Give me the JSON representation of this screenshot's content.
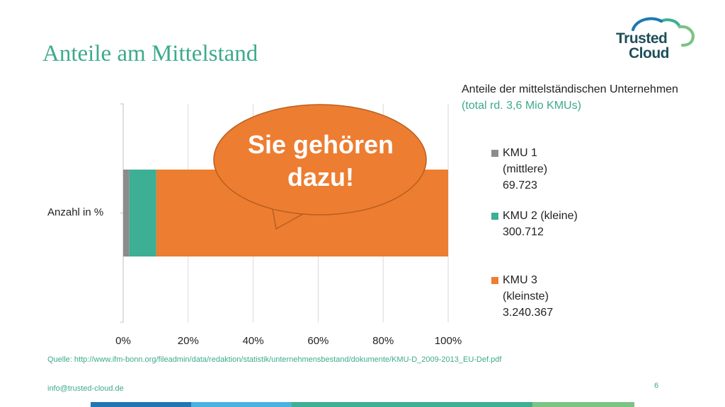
{
  "page": {
    "title": "Anteile am Mittelstand",
    "source": "Quelle: http://www.ifm-bonn.org/fileadmin/data/redaktion/statistik/unternehmensbestand/dokumente/KMU-D_2009-2013_EU-Def.pdf",
    "email": "info@trusted-cloud.de",
    "page_number": "6"
  },
  "logo": {
    "line1": "Trusted",
    "line2": "Cloud",
    "icon": "cloud-logo-icon"
  },
  "callout": {
    "line1": "Sie gehören",
    "line2": "dazu!"
  },
  "legend": {
    "title": "Anteile der mittelständischen Unternehmen",
    "subtitle": "(total rd. 3,6 Mio KMUs)",
    "items": [
      {
        "lines": [
          "KMU 1",
          "(mittlere)",
          "69.723"
        ],
        "color": "#8c8c8c"
      },
      {
        "lines": [
          "KMU 2 (kleine)",
          "300.712"
        ],
        "color": "#3daf94"
      },
      {
        "lines": [
          "KMU 3",
          "(kleinste)",
          "3.240.367"
        ],
        "color": "#ed7d31"
      }
    ]
  },
  "chart_data": {
    "type": "bar",
    "orientation": "horizontal",
    "stacking": "percent",
    "ylabel": "Anzahl in %",
    "x_ticks": [
      "0%",
      "20%",
      "40%",
      "60%",
      "80%",
      "100%"
    ],
    "xlim": [
      0,
      100
    ],
    "grid": true,
    "legend_position": "right",
    "series": [
      {
        "name": "KMU 1 (mittlere)",
        "value": 69723,
        "percent": 1.9,
        "color": "#8c8c8c"
      },
      {
        "name": "KMU 2 (kleine)",
        "value": 300712,
        "percent": 8.3,
        "color": "#3daf94"
      },
      {
        "name": "KMU 3 (kleinste)",
        "value": 3240367,
        "percent": 89.8,
        "color": "#ed7d31"
      }
    ]
  },
  "colors": {
    "accent": "#3daa8c",
    "callout": "#ed7d31",
    "footer": [
      "#1f77b4",
      "#4bb3e0",
      "#3daf94",
      "#7dc383"
    ]
  }
}
